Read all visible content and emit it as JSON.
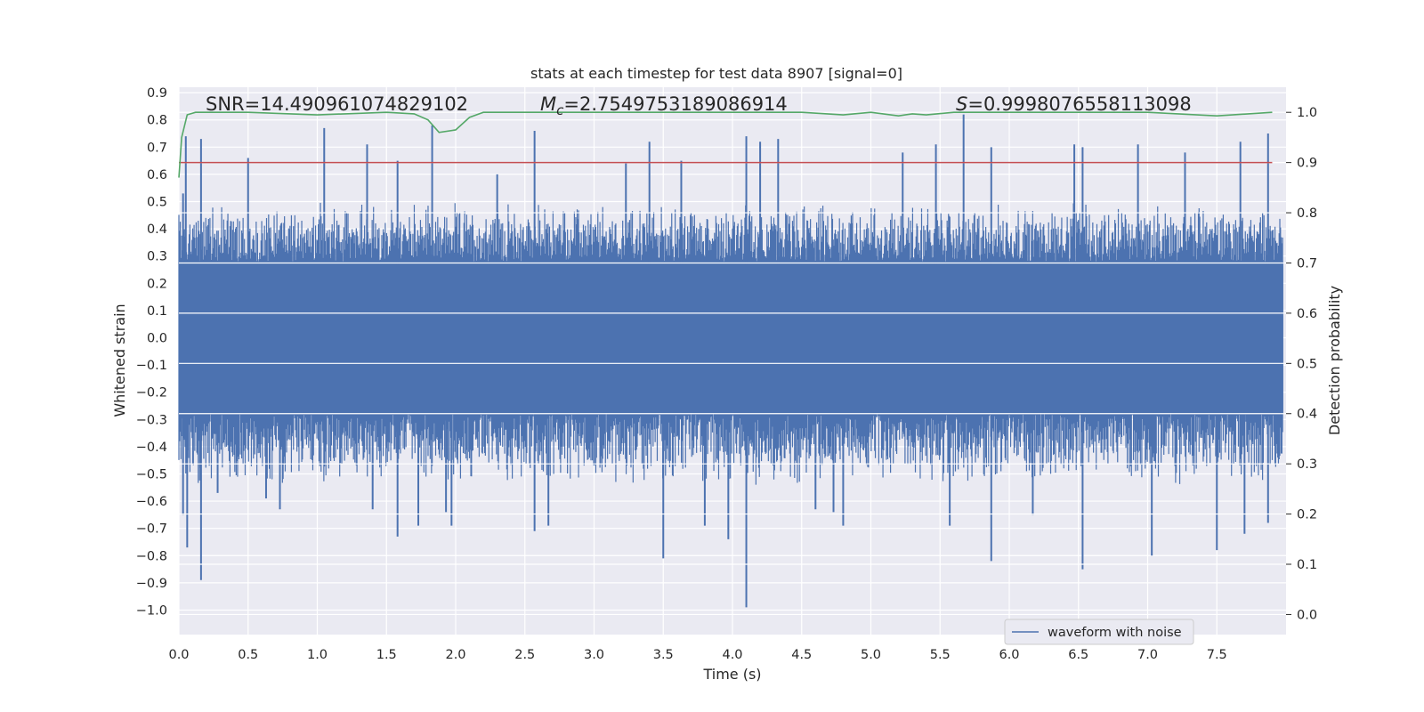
{
  "chart_data": {
    "type": "line",
    "title": "stats at each timestep for test data 8907 [signal=0]",
    "xlabel": "Time (s)",
    "ylabel_left": "Whitened strain",
    "ylabel_right": "Detection probability",
    "xlim": [
      0,
      8
    ],
    "ylim_left": [
      -1.09,
      0.92
    ],
    "ylim_right": [
      -0.04,
      1.05
    ],
    "x_ticks": [
      "0.0",
      "0.5",
      "1.0",
      "1.5",
      "2.0",
      "2.5",
      "3.0",
      "3.5",
      "4.0",
      "4.5",
      "5.0",
      "5.5",
      "6.0",
      "6.5",
      "7.0",
      "7.5"
    ],
    "x_tick_values": [
      0,
      0.5,
      1,
      1.5,
      2,
      2.5,
      3,
      3.5,
      4,
      4.5,
      5,
      5.5,
      6,
      6.5,
      7,
      7.5
    ],
    "y_left_ticks": [
      "0.9",
      "0.8",
      "0.7",
      "0.6",
      "0.5",
      "0.4",
      "0.3",
      "0.2",
      "0.1",
      "0.0",
      "−0.1",
      "−0.2",
      "−0.3",
      "−0.4",
      "−0.5",
      "−0.6",
      "−0.7",
      "−0.8",
      "−0.9",
      "−1.0"
    ],
    "y_left_tick_values": [
      0.9,
      0.8,
      0.7,
      0.6,
      0.5,
      0.4,
      0.3,
      0.2,
      0.1,
      0.0,
      -0.1,
      -0.2,
      -0.3,
      -0.4,
      -0.5,
      -0.6,
      -0.7,
      -0.8,
      -0.9,
      -1.0
    ],
    "y_right_ticks": [
      "1.0",
      "0.9",
      "0.8",
      "0.7",
      "0.6",
      "0.5",
      "0.4",
      "0.3",
      "0.2",
      "0.1",
      "0.0"
    ],
    "y_right_tick_values": [
      1.0,
      0.9,
      0.8,
      0.7,
      0.6,
      0.5,
      0.4,
      0.3,
      0.2,
      0.1,
      0.0
    ],
    "grid": true,
    "stats": {
      "snr": "SNR=14.490961074829102",
      "mc_symbol": "M",
      "mc_subscript": "c",
      "mc_value": "=2.7549753189086914",
      "s_symbol": "S",
      "s_value": "=0.9998076558113098"
    },
    "legend": {
      "position": "bottom-right",
      "label": "waveform with noise"
    },
    "series": [
      {
        "name": "waveform with noise",
        "axis": "left",
        "color": "#4c72b0",
        "kind": "noise",
        "core_band": [
          -0.28,
          0.28
        ],
        "typical_peak": [
          -0.55,
          0.5
        ],
        "spikes": [
          {
            "x": 0.03,
            "y": 0.53
          },
          {
            "x": 0.05,
            "y": 0.74
          },
          {
            "x": 0.03,
            "y": -0.65
          },
          {
            "x": 0.06,
            "y": -0.77
          },
          {
            "x": 0.16,
            "y": 0.73
          },
          {
            "x": 0.16,
            "y": -0.89
          },
          {
            "x": 0.28,
            "y": -0.57
          },
          {
            "x": 0.5,
            "y": 0.66
          },
          {
            "x": 0.63,
            "y": -0.59
          },
          {
            "x": 0.73,
            "y": -0.63
          },
          {
            "x": 1.05,
            "y": 0.77
          },
          {
            "x": 1.36,
            "y": 0.71
          },
          {
            "x": 1.4,
            "y": -0.63
          },
          {
            "x": 1.58,
            "y": 0.65
          },
          {
            "x": 1.58,
            "y": -0.73
          },
          {
            "x": 1.73,
            "y": -0.69
          },
          {
            "x": 1.83,
            "y": 0.78
          },
          {
            "x": 1.93,
            "y": -0.64
          },
          {
            "x": 1.97,
            "y": -0.69
          },
          {
            "x": 2.3,
            "y": 0.6
          },
          {
            "x": 2.57,
            "y": 0.76
          },
          {
            "x": 2.57,
            "y": -0.71
          },
          {
            "x": 2.67,
            "y": -0.69
          },
          {
            "x": 3.23,
            "y": 0.64
          },
          {
            "x": 3.4,
            "y": 0.72
          },
          {
            "x": 3.5,
            "y": -0.81
          },
          {
            "x": 3.63,
            "y": 0.65
          },
          {
            "x": 3.8,
            "y": -0.69
          },
          {
            "x": 3.97,
            "y": -0.74
          },
          {
            "x": 4.1,
            "y": 0.74
          },
          {
            "x": 4.1,
            "y": -0.99
          },
          {
            "x": 4.2,
            "y": 0.72
          },
          {
            "x": 4.33,
            "y": 0.73
          },
          {
            "x": 4.6,
            "y": -0.63
          },
          {
            "x": 4.73,
            "y": -0.64
          },
          {
            "x": 4.8,
            "y": -0.69
          },
          {
            "x": 5.23,
            "y": 0.68
          },
          {
            "x": 5.47,
            "y": 0.71
          },
          {
            "x": 5.57,
            "y": -0.69
          },
          {
            "x": 5.67,
            "y": 0.82
          },
          {
            "x": 5.87,
            "y": 0.7
          },
          {
            "x": 5.87,
            "y": -0.82
          },
          {
            "x": 6.17,
            "y": -0.65
          },
          {
            "x": 6.47,
            "y": 0.71
          },
          {
            "x": 6.53,
            "y": 0.7
          },
          {
            "x": 6.53,
            "y": -0.85
          },
          {
            "x": 6.93,
            "y": 0.71
          },
          {
            "x": 7.03,
            "y": -0.8
          },
          {
            "x": 7.27,
            "y": 0.68
          },
          {
            "x": 7.5,
            "y": -0.78
          },
          {
            "x": 7.67,
            "y": 0.72
          },
          {
            "x": 7.7,
            "y": -0.72
          },
          {
            "x": 7.87,
            "y": 0.75
          },
          {
            "x": 7.87,
            "y": -0.68
          }
        ]
      },
      {
        "name": "",
        "axis": "right",
        "color": "#55a868",
        "x": [
          0.0,
          0.02,
          0.06,
          0.12,
          0.2,
          0.5,
          1.0,
          1.5,
          1.7,
          1.8,
          1.88,
          2.0,
          2.1,
          2.2,
          2.5,
          3.0,
          3.5,
          4.0,
          4.5,
          4.8,
          5.0,
          5.2,
          5.3,
          5.4,
          5.6,
          6.0,
          6.5,
          7.0,
          7.5,
          7.9
        ],
        "y": [
          0.87,
          0.95,
          0.995,
          1.0,
          1.0,
          1.0,
          0.995,
          1.0,
          0.997,
          0.985,
          0.96,
          0.965,
          0.99,
          1.0,
          1.0,
          1.0,
          1.0,
          1.0,
          1.0,
          0.995,
          1.0,
          0.993,
          0.997,
          0.995,
          1.0,
          1.0,
          1.0,
          1.0,
          0.993,
          1.0
        ]
      },
      {
        "name": "",
        "axis": "right",
        "color": "#c44e52",
        "x": [
          0.0,
          7.9
        ],
        "y": [
          0.9,
          0.9
        ]
      }
    ]
  }
}
